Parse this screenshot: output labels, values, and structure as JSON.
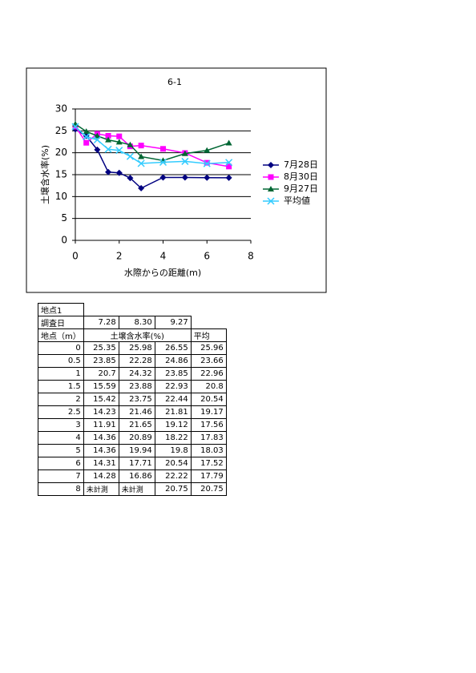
{
  "chart_data": {
    "type": "line",
    "title": "6-1",
    "x_label": "水際からの距離(m)",
    "y_label": "土壌含水率(%)",
    "x": [
      0,
      0.5,
      1,
      1.5,
      2,
      2.5,
      3,
      4,
      5,
      6,
      7
    ],
    "series": [
      {
        "name": "7月28日",
        "color": "#000080",
        "marker": "diamond",
        "values": [
          25.35,
          23.85,
          20.7,
          15.59,
          15.42,
          14.23,
          11.91,
          14.36,
          14.36,
          14.31,
          14.28
        ]
      },
      {
        "name": "8月30日",
        "color": "#ff00ff",
        "marker": "square",
        "values": [
          25.98,
          22.28,
          24.32,
          23.88,
          23.75,
          21.46,
          21.65,
          20.89,
          19.94,
          17.71,
          16.86
        ]
      },
      {
        "name": "9月27日",
        "color": "#006633",
        "marker": "triangle",
        "values": [
          26.55,
          24.86,
          23.85,
          22.93,
          22.44,
          21.81,
          19.12,
          18.22,
          19.8,
          20.54,
          22.22
        ]
      },
      {
        "name": "平均値",
        "color": "#33ccff",
        "marker": "cross",
        "values": [
          25.96,
          23.66,
          22.96,
          20.8,
          20.54,
          19.17,
          17.56,
          17.83,
          18.03,
          17.52,
          17.79
        ]
      }
    ],
    "xlim": [
      0,
      8
    ],
    "xticks": [
      0,
      2,
      4,
      6,
      8
    ],
    "ylim": [
      0,
      30
    ],
    "yticks": [
      0,
      5,
      10,
      15,
      20,
      25,
      30
    ],
    "grid": true,
    "legend": "right"
  },
  "table": {
    "site": "地点1",
    "date_label": "調査日",
    "dates": [
      "7.28",
      "8.30",
      "9.27"
    ],
    "header": [
      "地点（m）",
      "土壌含水率(%)",
      "平均"
    ],
    "rows": [
      [
        0,
        25.35,
        25.98,
        26.55,
        25.96
      ],
      [
        0.5,
        23.85,
        22.28,
        24.86,
        23.66
      ],
      [
        1,
        20.7,
        24.32,
        23.85,
        22.96
      ],
      [
        1.5,
        15.59,
        23.88,
        22.93,
        20.8
      ],
      [
        2,
        15.42,
        23.75,
        22.44,
        20.54
      ],
      [
        2.5,
        14.23,
        21.46,
        21.81,
        19.17
      ],
      [
        3,
        11.91,
        21.65,
        19.12,
        17.56
      ],
      [
        4,
        14.36,
        20.89,
        18.22,
        17.83
      ],
      [
        5,
        14.36,
        19.94,
        19.8,
        18.03
      ],
      [
        6,
        14.31,
        17.71,
        20.54,
        17.52
      ],
      [
        7,
        14.28,
        16.86,
        22.22,
        17.79
      ],
      [
        8,
        "未計測",
        "未計測",
        20.75,
        20.75
      ]
    ]
  }
}
